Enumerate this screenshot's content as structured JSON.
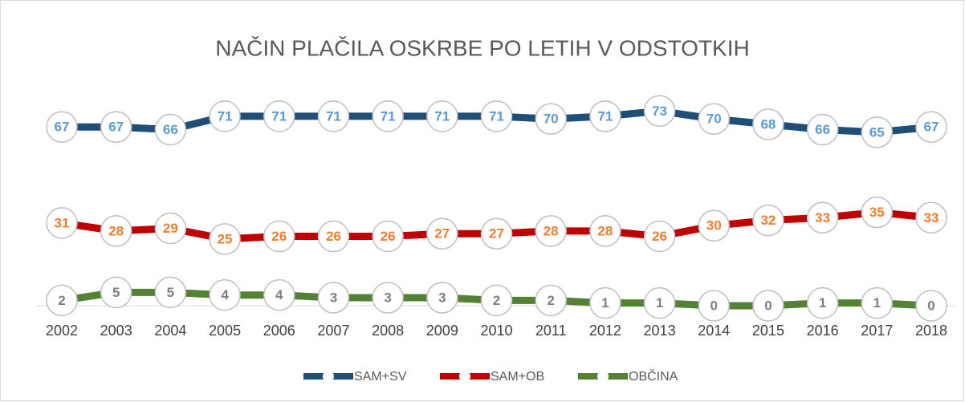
{
  "chart_data": {
    "type": "line",
    "title": "NAČIN PLAČILA OSKRBE PO LETIH V ODSTOTKIH",
    "categories": [
      "2002",
      "2003",
      "2004",
      "2005",
      "2006",
      "2007",
      "2008",
      "2009",
      "2010",
      "2011",
      "2012",
      "2013",
      "2014",
      "2015",
      "2016",
      "2017",
      "2018"
    ],
    "series": [
      {
        "name": "SAM+SV",
        "color": "#1f4e79",
        "label_color": "#5b9bd5",
        "values": [
          67,
          67,
          66,
          71,
          71,
          71,
          71,
          71,
          71,
          70,
          71,
          73,
          70,
          68,
          66,
          65,
          67
        ]
      },
      {
        "name": "SAM+OB",
        "color": "#c00000",
        "label_color": "#ed7d31",
        "values": [
          31,
          28,
          29,
          25,
          26,
          26,
          26,
          27,
          27,
          28,
          28,
          26,
          30,
          32,
          33,
          35,
          33
        ]
      },
      {
        "name": "OBČINA",
        "color": "#548235",
        "label_color": "#7f7f7f",
        "values": [
          2,
          5,
          5,
          4,
          4,
          3,
          3,
          3,
          2,
          2,
          1,
          1,
          0,
          0,
          1,
          1,
          0
        ]
      }
    ],
    "ylim": [
      0,
      80
    ],
    "legend": "bottom"
  }
}
